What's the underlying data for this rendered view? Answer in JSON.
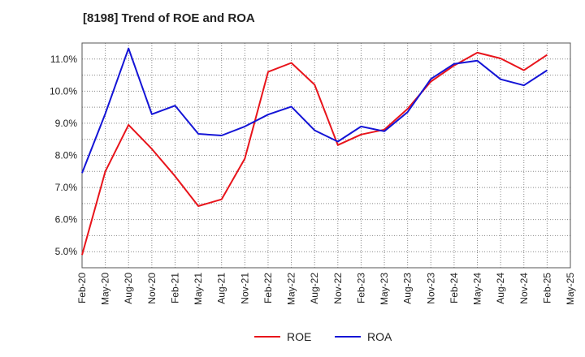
{
  "chart_data": {
    "type": "line",
    "title": "[8198]  Trend of ROE and ROA",
    "xlabel": "",
    "ylabel": "",
    "categories": [
      "Feb-20",
      "May-20",
      "Aug-20",
      "Nov-20",
      "Feb-21",
      "May-21",
      "Aug-21",
      "Nov-21",
      "Feb-22",
      "May-22",
      "Aug-22",
      "Nov-22",
      "Feb-23",
      "May-23",
      "Aug-23",
      "Nov-23",
      "Feb-24",
      "May-24",
      "Aug-24",
      "Nov-24",
      "Feb-25",
      "May-25"
    ],
    "x_tick_labels": [
      "Feb-20",
      "May-20",
      "Aug-20",
      "Nov-20",
      "Feb-21",
      "May-21",
      "Aug-21",
      "Nov-21",
      "Feb-22",
      "May-22",
      "Aug-22",
      "Nov-22",
      "Feb-23",
      "May-23",
      "Aug-23",
      "Nov-23",
      "Feb-24",
      "May-24",
      "Aug-24",
      "Nov-24",
      "Feb-25",
      "May-25"
    ],
    "y_ticks": [
      5.0,
      6.0,
      7.0,
      8.0,
      9.0,
      10.0,
      11.0
    ],
    "y_tick_labels": [
      "5.0%",
      "6.0%",
      "7.0%",
      "8.0%",
      "9.0%",
      "10.0%",
      "11.0%"
    ],
    "ylim": [
      4.5,
      11.5
    ],
    "grid": true,
    "legend_position": "bottom-center",
    "series": [
      {
        "name": "ROE",
        "color": "#e8141b",
        "values": [
          4.9,
          7.5,
          8.95,
          8.2,
          7.35,
          6.42,
          6.63,
          7.9,
          10.6,
          10.88,
          10.2,
          8.32,
          8.65,
          8.8,
          9.45,
          10.3,
          10.8,
          11.2,
          11.02,
          10.65,
          11.13,
          null
        ]
      },
      {
        "name": "ROA",
        "color": "#1414d6",
        "values": [
          7.45,
          9.3,
          11.33,
          9.28,
          9.55,
          8.67,
          8.62,
          8.9,
          9.27,
          9.52,
          8.78,
          8.43,
          8.9,
          8.75,
          9.35,
          10.38,
          10.85,
          10.95,
          10.37,
          10.18,
          10.65,
          null
        ]
      }
    ]
  }
}
